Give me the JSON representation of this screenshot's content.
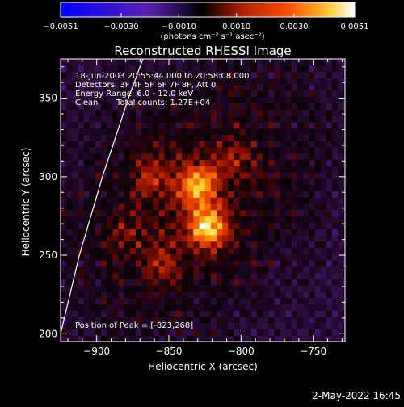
{
  "chart_data": {
    "type": "heatmap",
    "title": "Reconstructed RHESSI Image",
    "xlabel": "Heliocentric X (arcsec)",
    "ylabel": "Heliocentric Y (arcsec)",
    "xlim": [
      -925,
      -728
    ],
    "ylim": [
      195,
      375
    ],
    "x_ticks": [
      -900,
      -850,
      -800,
      -750
    ],
    "y_ticks": [
      200,
      250,
      300,
      350
    ],
    "x_tick_labels": [
      "−900",
      "−850",
      "−800",
      "−750"
    ],
    "y_tick_labels": [
      "200",
      "250",
      "300",
      "350"
    ],
    "grid": false,
    "annotations": [
      "18-Jun-2003 20:55:44.000 to 20:58:08.000",
      "Detectors: 3F 4F 5F 6F 7F 8F, Att 0",
      "Energy Range: 6.0 - 12.0 keV",
      "Clean",
      "Total counts: 1.27E+04"
    ],
    "peak_label": "Position of Peak = [-823,268]",
    "peak": [
      -823,
      268
    ],
    "colorbar": {
      "min": -0.0051,
      "max": 0.0051,
      "ticks": [
        -0.0051,
        -0.003,
        -0.001,
        0.001,
        0.003,
        0.0051
      ],
      "tick_labels": [
        "−0.0051",
        "−0.0030",
        "−0.0010",
        "0.0010",
        "0.0030",
        "0.0051"
      ],
      "units_text": "(photons cm⁻² s⁻¹ asec⁻²)"
    },
    "limb_curve": [
      [
        -925,
        200
      ],
      [
        -912,
        250
      ],
      [
        -896,
        300
      ],
      [
        -878,
        350
      ],
      [
        -868,
        375
      ]
    ],
    "sources": [
      {
        "x": -830,
        "y": 295,
        "value": 0.0045
      },
      {
        "x": -823,
        "y": 268,
        "value": 0.0051
      },
      {
        "x": -862,
        "y": 300,
        "value": 0.0018
      },
      {
        "x": -855,
        "y": 245,
        "value": 0.0015
      },
      {
        "x": -805,
        "y": 310,
        "value": 0.0012
      },
      {
        "x": -880,
        "y": 265,
        "value": 0.001
      }
    ]
  },
  "footer": {
    "timestamp": "2-May-2022 16:45"
  },
  "colors": {
    "background": "#000000",
    "foreground": "#ffffff",
    "colormap": [
      "#0000ff",
      "#5a1fb0",
      "#320a40",
      "#000000",
      "#b02000",
      "#ff4000",
      "#ff9000",
      "#ffff60",
      "#ffffff"
    ]
  }
}
